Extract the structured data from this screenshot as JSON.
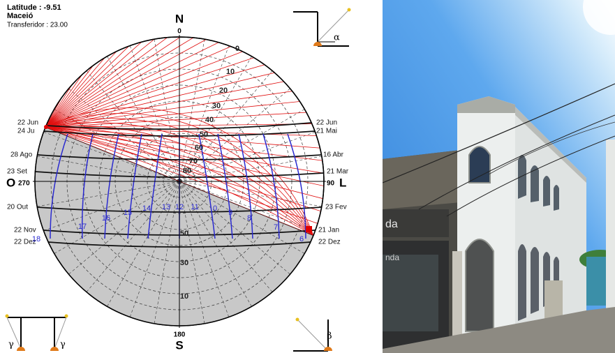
{
  "diagram": {
    "header": {
      "latitude": "Latitude : -9.51",
      "city": "Maceió",
      "protractor": "Transferidor : 23.00"
    },
    "cardinals": {
      "north": "N",
      "north_azimuth": "0",
      "south": "S",
      "south_azimuth": "180",
      "west": "O",
      "west_azimuth": "270",
      "east": "L",
      "east_azimuth": "90"
    },
    "dates_left": [
      "22 Jun",
      "24 Ju",
      "28 Ago",
      "23 Set",
      "20 Out",
      "22 Nov",
      "22 Dez"
    ],
    "dates_right": [
      "22 Jun",
      "21 Mai",
      "16 Abr",
      "21 Mar",
      "23 Fev",
      "21 Jan",
      "22 Dez"
    ],
    "hours": [
      "18",
      "17",
      "16",
      "15",
      "14",
      "13",
      "12",
      "11",
      "0",
      "9",
      "8",
      "7",
      "6"
    ],
    "altitudes_top": [
      "0",
      "10",
      "20",
      "30",
      "40",
      "50",
      "60",
      "70",
      "80"
    ],
    "altitudes_bottom": [
      "50",
      "30",
      "10"
    ],
    "angle_symbols": [
      "α",
      "β",
      "γ",
      "γ"
    ]
  },
  "photo": {
    "signs": [
      "da",
      "nda"
    ]
  }
}
